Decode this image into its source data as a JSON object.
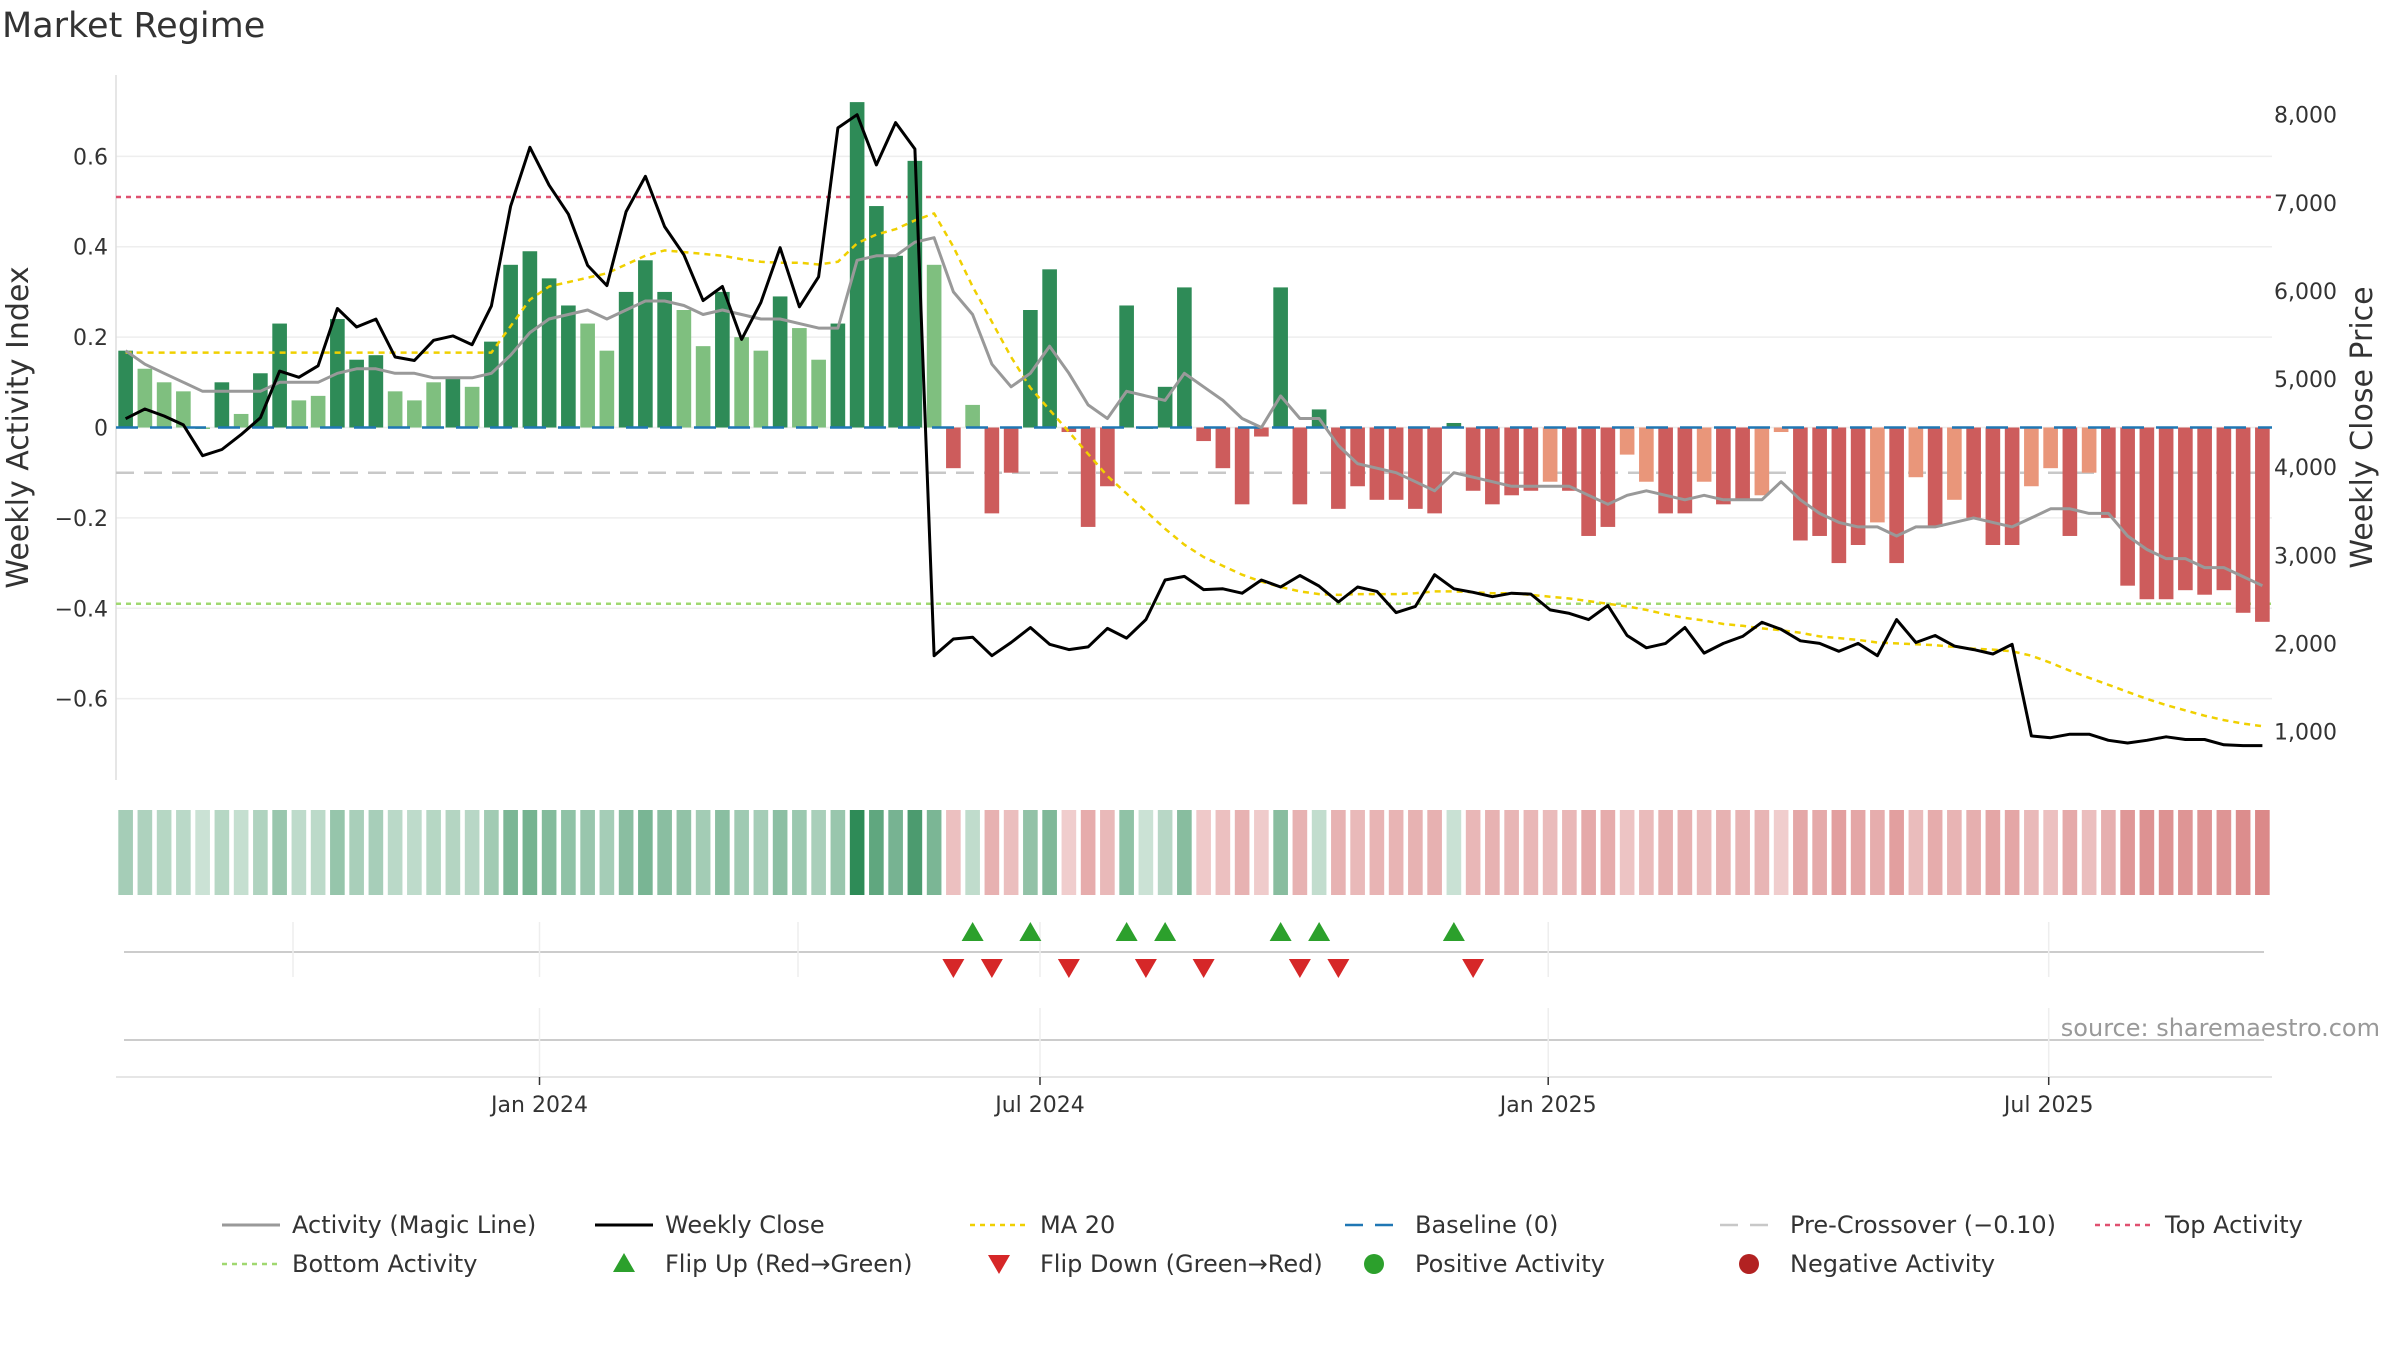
{
  "title": "Market Regime",
  "source": "source: sharemaestro.com",
  "colors": {
    "pos_strong": "#2e8b57",
    "pos_weak": "#7fbf7f",
    "neg_strong": "#cd5c5c",
    "neg_weak": "#e9967a",
    "magic": "#999999",
    "close": "#000000",
    "ma": "#f0d000",
    "baseline": "#1f77b4",
    "pre": "#c8c8c8",
    "top": "#e05070",
    "bottom": "#a0d870",
    "flip_up": "#2ca02c",
    "flip_down": "#d62728"
  },
  "chart_data": {
    "type": "bar",
    "ylabel_left": "Weekly Activity Index",
    "ylabel_right": "Weekly Close Price",
    "ylim_left": [
      -0.78,
      0.78
    ],
    "ylim_right": [
      450,
      8450
    ],
    "left_ticks": [
      {
        "v": 0.6,
        "label": "0.6"
      },
      {
        "v": 0.4,
        "label": "0.4"
      },
      {
        "v": 0.2,
        "label": "0.2"
      },
      {
        "v": 0,
        "label": "0"
      },
      {
        "v": -0.2,
        "label": "−0.2"
      },
      {
        "v": -0.4,
        "label": "−0.4"
      },
      {
        "v": -0.6,
        "label": "−0.6"
      }
    ],
    "right_ticks": [
      {
        "v": 1000,
        "label": "1,000"
      },
      {
        "v": 2000,
        "label": "2,000"
      },
      {
        "v": 3000,
        "label": "3,000"
      },
      {
        "v": 4000,
        "label": "4,000"
      },
      {
        "v": 5000,
        "label": "5,000"
      },
      {
        "v": 6000,
        "label": "6,000"
      },
      {
        "v": 7000,
        "label": "7,000"
      },
      {
        "v": 8000,
        "label": "8,000"
      }
    ],
    "x_ticks": [
      {
        "week": 22,
        "label": "Jan 2024"
      },
      {
        "week": 48,
        "label": "Jul 2024"
      },
      {
        "week": 74.4,
        "label": "Jan 2025"
      },
      {
        "week": 100.4,
        "label": "Jul 2025"
      }
    ],
    "weeks_count": 112,
    "activity": [
      0.17,
      0.13,
      0.1,
      0.08,
      0.0,
      0.1,
      0.03,
      0.12,
      0.23,
      0.06,
      0.07,
      0.24,
      0.15,
      0.16,
      0.08,
      0.06,
      0.1,
      0.11,
      0.09,
      0.19,
      0.36,
      0.39,
      0.33,
      0.27,
      0.23,
      0.17,
      0.3,
      0.37,
      0.3,
      0.26,
      0.18,
      0.3,
      0.2,
      0.17,
      0.29,
      0.22,
      0.15,
      0.23,
      0.72,
      0.49,
      0.38,
      0.59,
      0.36,
      -0.09,
      0.05,
      -0.19,
      -0.1,
      0.26,
      0.35,
      -0.01,
      -0.22,
      -0.13,
      0.27,
      0.0,
      0.09,
      0.31,
      -0.03,
      -0.09,
      -0.17,
      -0.02,
      0.31,
      -0.17,
      0.04,
      -0.18,
      -0.13,
      -0.16,
      -0.16,
      -0.18,
      -0.19,
      0.01,
      -0.14,
      -0.17,
      -0.15,
      -0.14,
      -0.12,
      -0.14,
      -0.24,
      -0.22,
      -0.06,
      -0.12,
      -0.19,
      -0.19,
      -0.12,
      -0.17,
      -0.16,
      -0.15,
      -0.01,
      -0.25,
      -0.24,
      -0.3,
      -0.26,
      -0.21,
      -0.3,
      -0.11,
      -0.22,
      -0.16,
      -0.2,
      -0.26,
      -0.26,
      -0.13,
      -0.09,
      -0.24,
      -0.1,
      -0.2,
      -0.35,
      -0.38,
      -0.38,
      -0.36,
      -0.37,
      -0.36,
      -0.41,
      -0.43
    ],
    "magic_line": [
      0.17,
      0.14,
      0.12,
      0.1,
      0.08,
      0.08,
      0.08,
      0.08,
      0.1,
      0.1,
      0.1,
      0.12,
      0.13,
      0.13,
      0.12,
      0.12,
      0.11,
      0.11,
      0.11,
      0.12,
      0.16,
      0.21,
      0.24,
      0.25,
      0.26,
      0.24,
      0.26,
      0.28,
      0.28,
      0.27,
      0.25,
      0.26,
      0.25,
      0.24,
      0.24,
      0.23,
      0.22,
      0.22,
      0.37,
      0.38,
      0.38,
      0.41,
      0.42,
      0.3,
      0.25,
      0.14,
      0.09,
      0.12,
      0.18,
      0.12,
      0.05,
      0.02,
      0.08,
      0.07,
      0.06,
      0.12,
      0.09,
      0.06,
      0.02,
      0.0,
      0.07,
      0.02,
      0.02,
      -0.04,
      -0.08,
      -0.09,
      -0.1,
      -0.12,
      -0.14,
      -0.1,
      -0.11,
      -0.12,
      -0.13,
      -0.13,
      -0.13,
      -0.13,
      -0.15,
      -0.17,
      -0.15,
      -0.14,
      -0.15,
      -0.16,
      -0.15,
      -0.16,
      -0.16,
      -0.16,
      -0.12,
      -0.16,
      -0.19,
      -0.21,
      -0.22,
      -0.22,
      -0.24,
      -0.22,
      -0.22,
      -0.21,
      -0.2,
      -0.21,
      -0.22,
      -0.2,
      -0.18,
      -0.18,
      -0.19,
      -0.19,
      -0.24,
      -0.27,
      -0.29,
      -0.29,
      -0.31,
      -0.31,
      -0.33,
      -0.35
    ],
    "weekly_close": [
      4550,
      4660,
      4580,
      4480,
      4130,
      4200,
      4370,
      4560,
      5090,
      5020,
      5150,
      5800,
      5590,
      5680,
      5250,
      5210,
      5440,
      5490,
      5390,
      5830,
      6960,
      7630,
      7200,
      6870,
      6290,
      6060,
      6900,
      7300,
      6730,
      6410,
      5890,
      6050,
      5450,
      5870,
      6490,
      5820,
      6160,
      7850,
      8000,
      7430,
      7910,
      7610,
      1860,
      2050,
      2070,
      1860,
      2010,
      2180,
      1990,
      1930,
      1960,
      2170,
      2060,
      2270,
      2720,
      2760,
      2610,
      2620,
      2570,
      2720,
      2640,
      2770,
      2650,
      2470,
      2640,
      2590,
      2350,
      2420,
      2780,
      2620,
      2580,
      2530,
      2570,
      2560,
      2380,
      2340,
      2270,
      2430,
      2090,
      1950,
      2000,
      2180,
      1890,
      2000,
      2080,
      2240,
      2160,
      2030,
      2000,
      1910,
      2000,
      1860,
      2270,
      2010,
      2090,
      1970,
      1930,
      1880,
      1990,
      950,
      930,
      970,
      970,
      900,
      870,
      900,
      940,
      910,
      910,
      850,
      840,
      840
    ],
    "ma20": [
      5300,
      5300,
      5300,
      5300,
      5300,
      5300,
      5300,
      5300,
      5300,
      5300,
      5300,
      5300,
      5300,
      5300,
      5300,
      5300,
      5300,
      5300,
      5300,
      5300,
      5600,
      5900,
      6050,
      6100,
      6150,
      6200,
      6300,
      6400,
      6460,
      6440,
      6420,
      6400,
      6360,
      6330,
      6320,
      6320,
      6300,
      6330,
      6540,
      6640,
      6700,
      6800,
      6880,
      6500,
      6050,
      5650,
      5250,
      4900,
      4650,
      4400,
      4150,
      3900,
      3700,
      3500,
      3300,
      3120,
      2980,
      2880,
      2780,
      2700,
      2640,
      2590,
      2560,
      2550,
      2560,
      2560,
      2560,
      2570,
      2590,
      2590,
      2580,
      2570,
      2570,
      2550,
      2530,
      2510,
      2480,
      2450,
      2420,
      2380,
      2330,
      2290,
      2260,
      2220,
      2200,
      2170,
      2150,
      2120,
      2080,
      2060,
      2040,
      2010,
      2000,
      1990,
      1980,
      1960,
      1940,
      1930,
      1910,
      1860,
      1780,
      1690,
      1610,
      1530,
      1450,
      1370,
      1300,
      1240,
      1180,
      1130,
      1090,
      1060
    ],
    "baseline": 0,
    "pre_crossover": -0.1,
    "top_activity": 0.51,
    "bottom_activity": -0.39,
    "flip_up_weeks": [
      44,
      47,
      52,
      54,
      60,
      62,
      69
    ],
    "flip_down_weeks": [
      43,
      45,
      49,
      53,
      56,
      61,
      63,
      70
    ],
    "legend": [
      {
        "label": "Activity (Magic Line)",
        "kind": "line",
        "color": "#999999"
      },
      {
        "label": "Weekly Close",
        "kind": "line",
        "color": "#000000"
      },
      {
        "label": "MA 20",
        "kind": "dotted",
        "color": "#f0d000"
      },
      {
        "label": "Baseline (0)",
        "kind": "dashed",
        "color": "#1f77b4"
      },
      {
        "label": "Pre-Crossover (−0.10)",
        "kind": "dashed",
        "color": "#c8c8c8"
      },
      {
        "label": "Top Activity",
        "kind": "dotted",
        "color": "#e05070"
      },
      {
        "label": "Bottom Activity",
        "kind": "dotted",
        "color": "#a0d870"
      },
      {
        "label": "Flip Up (Red→Green)",
        "kind": "tri-up",
        "color": "#2ca02c"
      },
      {
        "label": "Flip Down (Green→Red)",
        "kind": "tri-down",
        "color": "#d62728"
      },
      {
        "label": "Positive Activity",
        "kind": "dot",
        "color": "#2ca02c"
      },
      {
        "label": "Negative Activity",
        "kind": "dot",
        "color": "#b22222"
      }
    ]
  }
}
